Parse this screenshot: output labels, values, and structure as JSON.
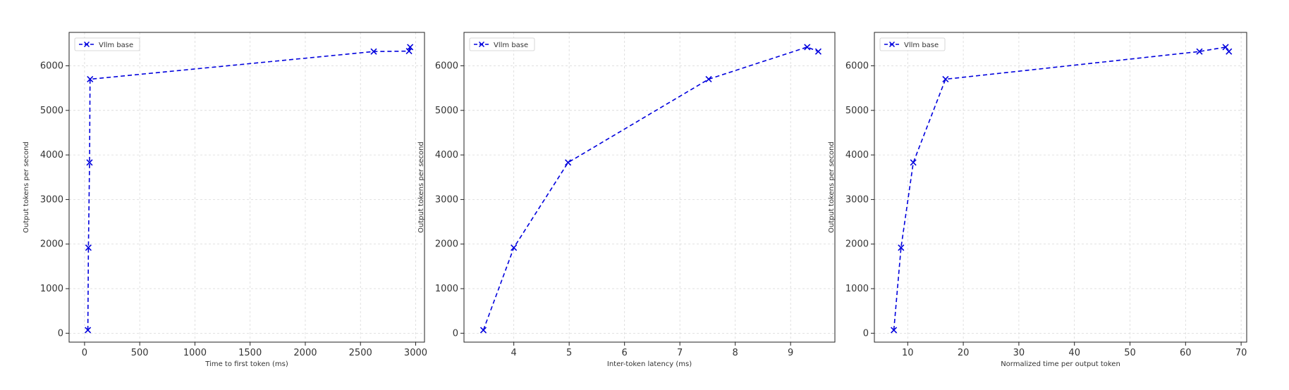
{
  "chart_data": [
    {
      "type": "line",
      "title": "",
      "xlabel": "Time to first token (ms)",
      "ylabel": "Output tokens per second",
      "xlim": [
        -140,
        3080
      ],
      "ylim": [
        -200,
        6750
      ],
      "xticks": [
        0,
        500,
        1000,
        1500,
        2000,
        2500,
        3000
      ],
      "yticks": [
        0,
        1000,
        2000,
        3000,
        4000,
        5000,
        6000
      ],
      "grid": true,
      "legend_position": "top-left",
      "series": [
        {
          "name": "Vllm base",
          "color": "#0000dd",
          "linestyle": "dashed",
          "marker": "x",
          "x": [
            30,
            35,
            45,
            50,
            2620,
            2940,
            2950
          ],
          "y": [
            70,
            1920,
            3830,
            5700,
            6320,
            6330,
            6420
          ]
        }
      ]
    },
    {
      "type": "line",
      "title": "",
      "xlabel": "Inter-token latency (ms)",
      "ylabel": "Output tokens per second",
      "xlim": [
        3.1,
        9.8
      ],
      "ylim": [
        -200,
        6750
      ],
      "xticks": [
        4,
        5,
        6,
        7,
        8,
        9
      ],
      "yticks": [
        0,
        1000,
        2000,
        3000,
        4000,
        5000,
        6000
      ],
      "grid": true,
      "legend_position": "top-left",
      "series": [
        {
          "name": "Vllm base",
          "color": "#0000dd",
          "linestyle": "dashed",
          "marker": "x",
          "x": [
            3.45,
            4.0,
            4.98,
            7.52,
            9.3,
            9.5
          ],
          "y": [
            70,
            1920,
            3830,
            5700,
            6420,
            6320
          ]
        }
      ]
    },
    {
      "type": "line",
      "title": "",
      "xlabel": "Normalized time per output token",
      "ylabel": "Output tokens per second",
      "xlim": [
        4.0,
        71.0
      ],
      "ylim": [
        -200,
        6750
      ],
      "xticks": [
        10,
        20,
        30,
        40,
        50,
        60,
        70
      ],
      "yticks": [
        0,
        1000,
        2000,
        3000,
        4000,
        5000,
        6000
      ],
      "grid": true,
      "legend_position": "top-left",
      "series": [
        {
          "name": "Vllm base",
          "color": "#0000dd",
          "linestyle": "dashed",
          "marker": "x",
          "x": [
            7.5,
            8.8,
            11.0,
            16.8,
            62.5,
            67.2,
            67.8
          ],
          "y": [
            70,
            1920,
            3830,
            5700,
            6320,
            6420,
            6320
          ]
        }
      ]
    }
  ]
}
